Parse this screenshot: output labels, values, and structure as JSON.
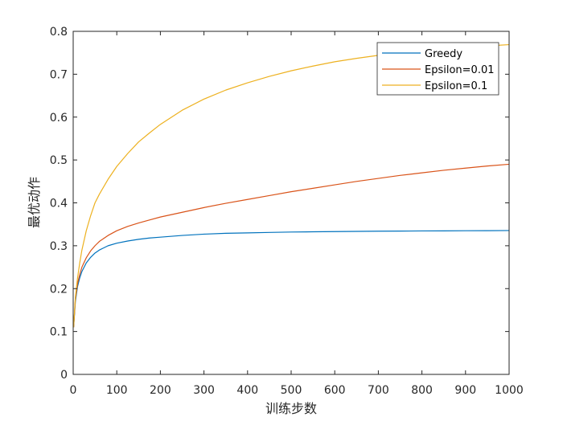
{
  "chart_data": {
    "type": "line",
    "title": "",
    "xlabel": "训练步数",
    "ylabel": "最优动作",
    "xlim": [
      0,
      1000
    ],
    "ylim": [
      0,
      0.8
    ],
    "x_ticks": [
      0,
      100,
      200,
      300,
      400,
      500,
      600,
      700,
      800,
      900,
      1000
    ],
    "x_tick_labels": [
      "0",
      "100",
      "200",
      "300",
      "400",
      "500",
      "600",
      "700",
      "800",
      "900",
      "1000"
    ],
    "y_ticks": [
      0,
      0.1,
      0.2,
      0.3,
      0.4,
      0.5,
      0.6,
      0.7,
      0.8
    ],
    "y_tick_labels": [
      "0",
      "0.1",
      "0.2",
      "0.3",
      "0.4",
      "0.5",
      "0.6",
      "0.7",
      "0.8"
    ],
    "grid": false,
    "legend_position": "top-right",
    "x": [
      1,
      5,
      10,
      15,
      20,
      30,
      40,
      50,
      60,
      80,
      100,
      125,
      150,
      175,
      200,
      250,
      300,
      350,
      400,
      450,
      500,
      550,
      600,
      650,
      700,
      750,
      800,
      850,
      900,
      950,
      1000
    ],
    "series": [
      {
        "name": "Greedy",
        "color": "#0072BD",
        "values": [
          0.11,
          0.17,
          0.205,
          0.225,
          0.24,
          0.26,
          0.273,
          0.283,
          0.29,
          0.3,
          0.306,
          0.311,
          0.315,
          0.318,
          0.32,
          0.324,
          0.327,
          0.329,
          0.33,
          0.331,
          0.332,
          0.3325,
          0.333,
          0.3335,
          0.334,
          0.3342,
          0.3345,
          0.3347,
          0.335,
          0.3352,
          0.3355
        ]
      },
      {
        "name": "Epsilon=0.01",
        "color": "#D95319",
        "values": [
          0.11,
          0.175,
          0.212,
          0.233,
          0.25,
          0.272,
          0.288,
          0.3,
          0.31,
          0.324,
          0.335,
          0.345,
          0.353,
          0.36,
          0.367,
          0.378,
          0.389,
          0.399,
          0.408,
          0.417,
          0.426,
          0.434,
          0.442,
          0.45,
          0.457,
          0.464,
          0.47,
          0.476,
          0.481,
          0.486,
          0.49
        ]
      },
      {
        "name": "Epsilon=0.1",
        "color": "#EDB120",
        "values": [
          0.11,
          0.18,
          0.225,
          0.26,
          0.29,
          0.335,
          0.37,
          0.4,
          0.42,
          0.455,
          0.485,
          0.515,
          0.542,
          0.563,
          0.583,
          0.616,
          0.642,
          0.663,
          0.68,
          0.695,
          0.708,
          0.719,
          0.729,
          0.737,
          0.744,
          0.75,
          0.755,
          0.759,
          0.763,
          0.766,
          0.769
        ]
      }
    ]
  }
}
